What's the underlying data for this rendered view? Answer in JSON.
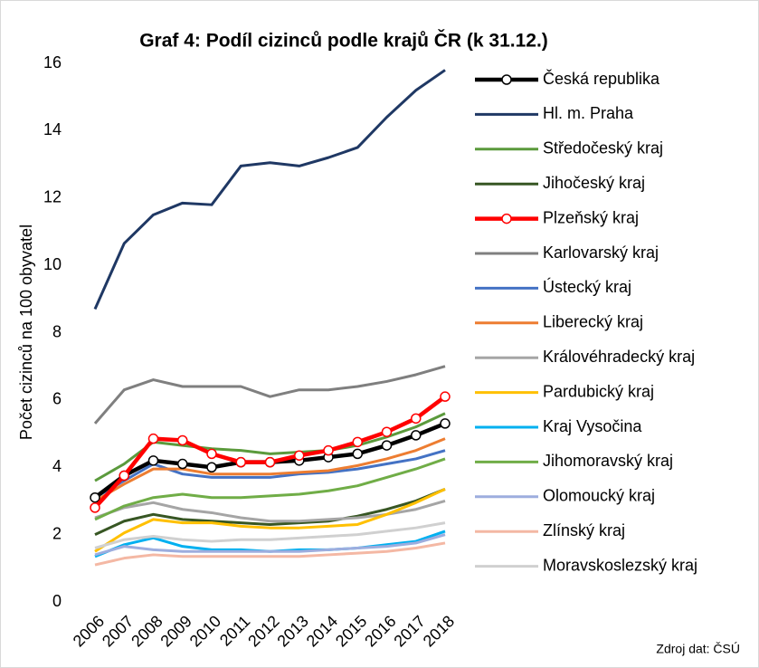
{
  "chart_data": {
    "type": "line",
    "title": "Graf 4: Podíl cizinců podle krajů ČR (k 31.12.)",
    "y_label": "Počet cizinců na 100 obyvatel",
    "source": "Zdroj dat: ČSÚ",
    "categories": [
      "2006",
      "2007",
      "2008",
      "2009",
      "2010",
      "2011",
      "2012",
      "2013",
      "2014",
      "2015",
      "2016",
      "2017",
      "2018"
    ],
    "ylim": [
      0,
      16
    ],
    "yticks": [
      0,
      2,
      4,
      6,
      8,
      10,
      12,
      14,
      16
    ],
    "grid": false,
    "legend": "right",
    "series": [
      {
        "name": "Česká republika",
        "color": "#000000",
        "marker": "circle",
        "values": [
          3.1,
          3.75,
          4.2,
          4.1,
          4.0,
          4.15,
          4.15,
          4.2,
          4.3,
          4.4,
          4.65,
          4.95,
          5.3
        ]
      },
      {
        "name": "Hl. m. Praha",
        "color": "#1f3864",
        "values": [
          8.7,
          10.65,
          11.5,
          11.85,
          11.8,
          12.95,
          13.05,
          12.95,
          13.2,
          13.5,
          14.4,
          15.2,
          15.8
        ]
      },
      {
        "name": "Středočeský kraj",
        "color": "#5b9a3c",
        "values": [
          3.6,
          4.1,
          4.75,
          4.65,
          4.55,
          4.5,
          4.4,
          4.45,
          4.5,
          4.65,
          4.9,
          5.2,
          5.6
        ]
      },
      {
        "name": "Jihočeský kraj",
        "color": "#375623",
        "values": [
          2.0,
          2.4,
          2.6,
          2.45,
          2.4,
          2.35,
          2.3,
          2.35,
          2.4,
          2.55,
          2.75,
          3.0,
          3.35
        ]
      },
      {
        "name": "Plzeňský kraj",
        "color": "#ff0000",
        "marker": "circle",
        "values": [
          2.8,
          3.75,
          4.85,
          4.8,
          4.4,
          4.15,
          4.15,
          4.35,
          4.5,
          4.75,
          5.05,
          5.45,
          6.1
        ]
      },
      {
        "name": "Karlovarský kraj",
        "color": "#7f7f7f",
        "values": [
          5.3,
          6.3,
          6.6,
          6.4,
          6.4,
          6.4,
          6.1,
          6.3,
          6.3,
          6.4,
          6.55,
          6.75,
          7.0
        ]
      },
      {
        "name": "Ústecký kraj",
        "color": "#4472c4",
        "values": [
          3.1,
          3.6,
          4.1,
          3.8,
          3.7,
          3.7,
          3.7,
          3.8,
          3.85,
          3.95,
          4.1,
          4.25,
          4.5
        ]
      },
      {
        "name": "Liberecký kraj",
        "color": "#ed7d31",
        "values": [
          3.0,
          3.5,
          3.95,
          3.95,
          3.8,
          3.8,
          3.8,
          3.85,
          3.9,
          4.05,
          4.25,
          4.5,
          4.85
        ]
      },
      {
        "name": "Královéhradecký kraj",
        "color": "#a5a5a5",
        "values": [
          2.5,
          2.8,
          2.95,
          2.75,
          2.65,
          2.5,
          2.4,
          2.4,
          2.45,
          2.5,
          2.6,
          2.75,
          3.0
        ]
      },
      {
        "name": "Pardubický kraj",
        "color": "#ffc000",
        "values": [
          1.5,
          2.05,
          2.45,
          2.35,
          2.35,
          2.25,
          2.2,
          2.2,
          2.25,
          2.3,
          2.6,
          2.95,
          3.35
        ]
      },
      {
        "name": "Kraj Vysočina",
        "color": "#00b0f0",
        "values": [
          1.35,
          1.7,
          1.9,
          1.65,
          1.55,
          1.55,
          1.5,
          1.55,
          1.55,
          1.6,
          1.7,
          1.8,
          2.1
        ]
      },
      {
        "name": "Jihomoravský kraj",
        "color": "#70ad47",
        "values": [
          2.45,
          2.85,
          3.1,
          3.2,
          3.1,
          3.1,
          3.15,
          3.2,
          3.3,
          3.45,
          3.7,
          3.95,
          4.25
        ]
      },
      {
        "name": "Olomoucký kraj",
        "color": "#9dadde",
        "values": [
          1.4,
          1.65,
          1.55,
          1.5,
          1.5,
          1.5,
          1.5,
          1.5,
          1.55,
          1.6,
          1.65,
          1.75,
          2.0
        ]
      },
      {
        "name": "Zlínský kraj",
        "color": "#f4b8a4",
        "values": [
          1.1,
          1.3,
          1.4,
          1.35,
          1.35,
          1.35,
          1.35,
          1.35,
          1.4,
          1.45,
          1.5,
          1.6,
          1.75
        ]
      },
      {
        "name": "Moravskoslezský kraj",
        "color": "#d0d0d0",
        "values": [
          1.6,
          1.85,
          1.95,
          1.85,
          1.8,
          1.85,
          1.85,
          1.9,
          1.95,
          2.0,
          2.1,
          2.2,
          2.35
        ]
      }
    ]
  }
}
